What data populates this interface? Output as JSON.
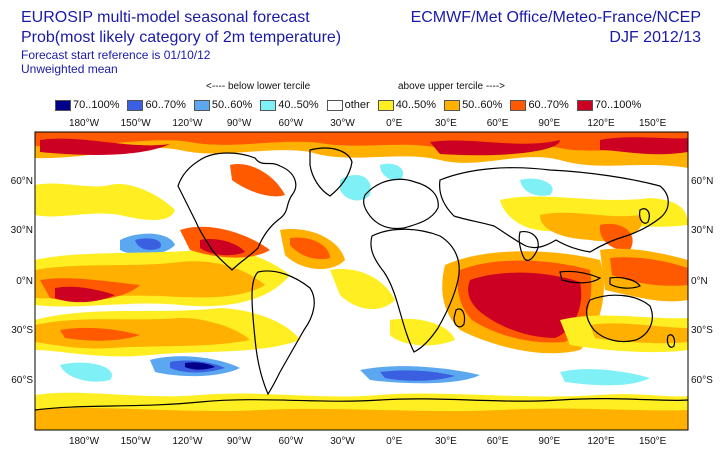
{
  "header": {
    "title_line1": "EUROSIP multi-model seasonal forecast",
    "title_line2": "Prob(most likely category of 2m temperature)",
    "subtitle_line1": "Forecast start reference is 01/10/12",
    "subtitle_line2": "Unweighted mean",
    "right_line1": "ECMWF/Met Office/Meteo-France/NCEP",
    "right_line2": "DJF 2012/13"
  },
  "legend": {
    "below_label": "<---- below lower tercile",
    "above_label": "above upper tercile ---->",
    "items": [
      {
        "label": "70..100%",
        "color": "#00008b"
      },
      {
        "label": "60..70%",
        "color": "#3a5fe0"
      },
      {
        "label": "50..60%",
        "color": "#5ca8f0"
      },
      {
        "label": "40..50%",
        "color": "#7ff0f5"
      },
      {
        "label": "other",
        "color": "#ffffff"
      },
      {
        "label": "40..50%",
        "color": "#ffee22"
      },
      {
        "label": "50..60%",
        "color": "#ffb000"
      },
      {
        "label": "60..70%",
        "color": "#ff5a00"
      },
      {
        "label": "70..100%",
        "color": "#cc0022"
      }
    ]
  },
  "axes": {
    "lon_labels": [
      "180°W",
      "150°W",
      "120°W",
      "90°W",
      "60°W",
      "30°W",
      "0°E",
      "30°E",
      "60°E",
      "90°E",
      "120°E",
      "150°E"
    ],
    "lat_labels": [
      "60°N",
      "30°N",
      "0°N",
      "30°S",
      "60°S"
    ]
  }
}
